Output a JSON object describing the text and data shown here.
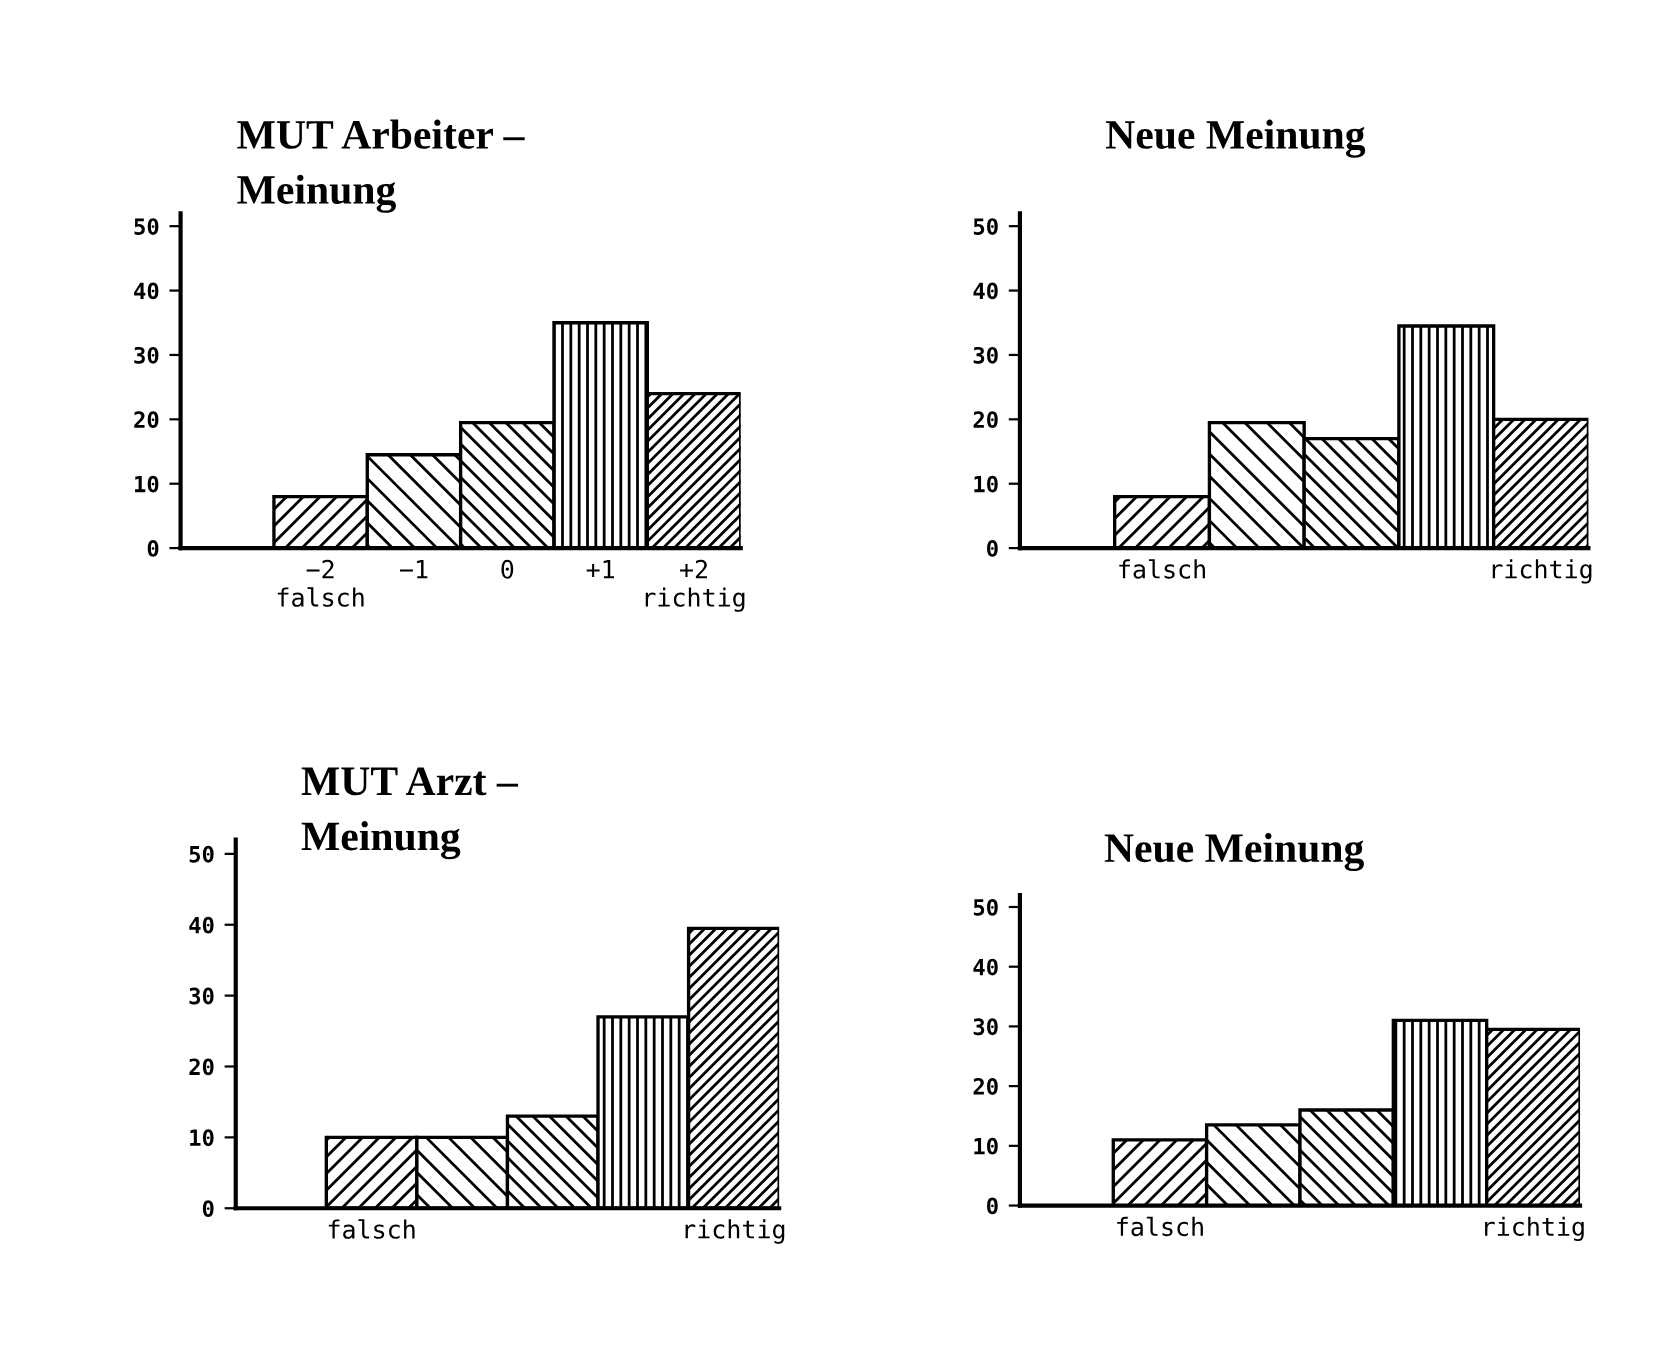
{
  "chart_data": [
    {
      "type": "bar",
      "title": "MUT Arbeiter –\nMeinung",
      "categories": [
        "−2\nfalsch",
        "−1",
        "0",
        "+1",
        "+2\nrichtig"
      ],
      "values": [
        8,
        14.5,
        19.5,
        35,
        24
      ],
      "colors": [
        "#000000",
        "#000000",
        "#000000",
        "#000000",
        "#000000"
      ],
      "ylim": [
        0,
        52
      ],
      "yticks": [
        0,
        10,
        20,
        30,
        40,
        50
      ],
      "grid": false,
      "legend": false
    },
    {
      "type": "bar",
      "title": "Neue Meinung",
      "categories": [
        "falsch",
        null,
        null,
        null,
        "richtig"
      ],
      "values": [
        8,
        19.5,
        17,
        34.5,
        20
      ],
      "colors": [
        "#000000",
        "#000000",
        "#000000",
        "#000000",
        "#000000"
      ],
      "ylim": [
        0,
        52
      ],
      "yticks": [
        0,
        10,
        20,
        30,
        40,
        50
      ],
      "grid": false,
      "legend": false
    },
    {
      "type": "bar",
      "title": "MUT Arzt –\nMeinung",
      "categories": [
        "falsch",
        null,
        null,
        null,
        "richtig"
      ],
      "values": [
        10,
        10,
        13,
        27,
        39.5
      ],
      "colors": [
        "#000000",
        "#000000",
        "#000000",
        "#000000",
        "#000000"
      ],
      "ylim": [
        0,
        52
      ],
      "yticks": [
        0,
        10,
        20,
        30,
        40,
        50
      ],
      "grid": false,
      "legend": false
    },
    {
      "type": "bar",
      "title": "Neue Meinung",
      "categories": [
        "falsch",
        null,
        null,
        null,
        "richtig"
      ],
      "values": [
        11,
        13.5,
        16,
        31,
        29.5
      ],
      "colors": [
        "#000000",
        "#000000",
        "#000000",
        "#000000",
        "#000000"
      ],
      "ylim": [
        0,
        52
      ],
      "yticks": [
        0,
        10,
        20,
        30,
        40,
        50
      ],
      "grid": false,
      "legend": false
    }
  ]
}
